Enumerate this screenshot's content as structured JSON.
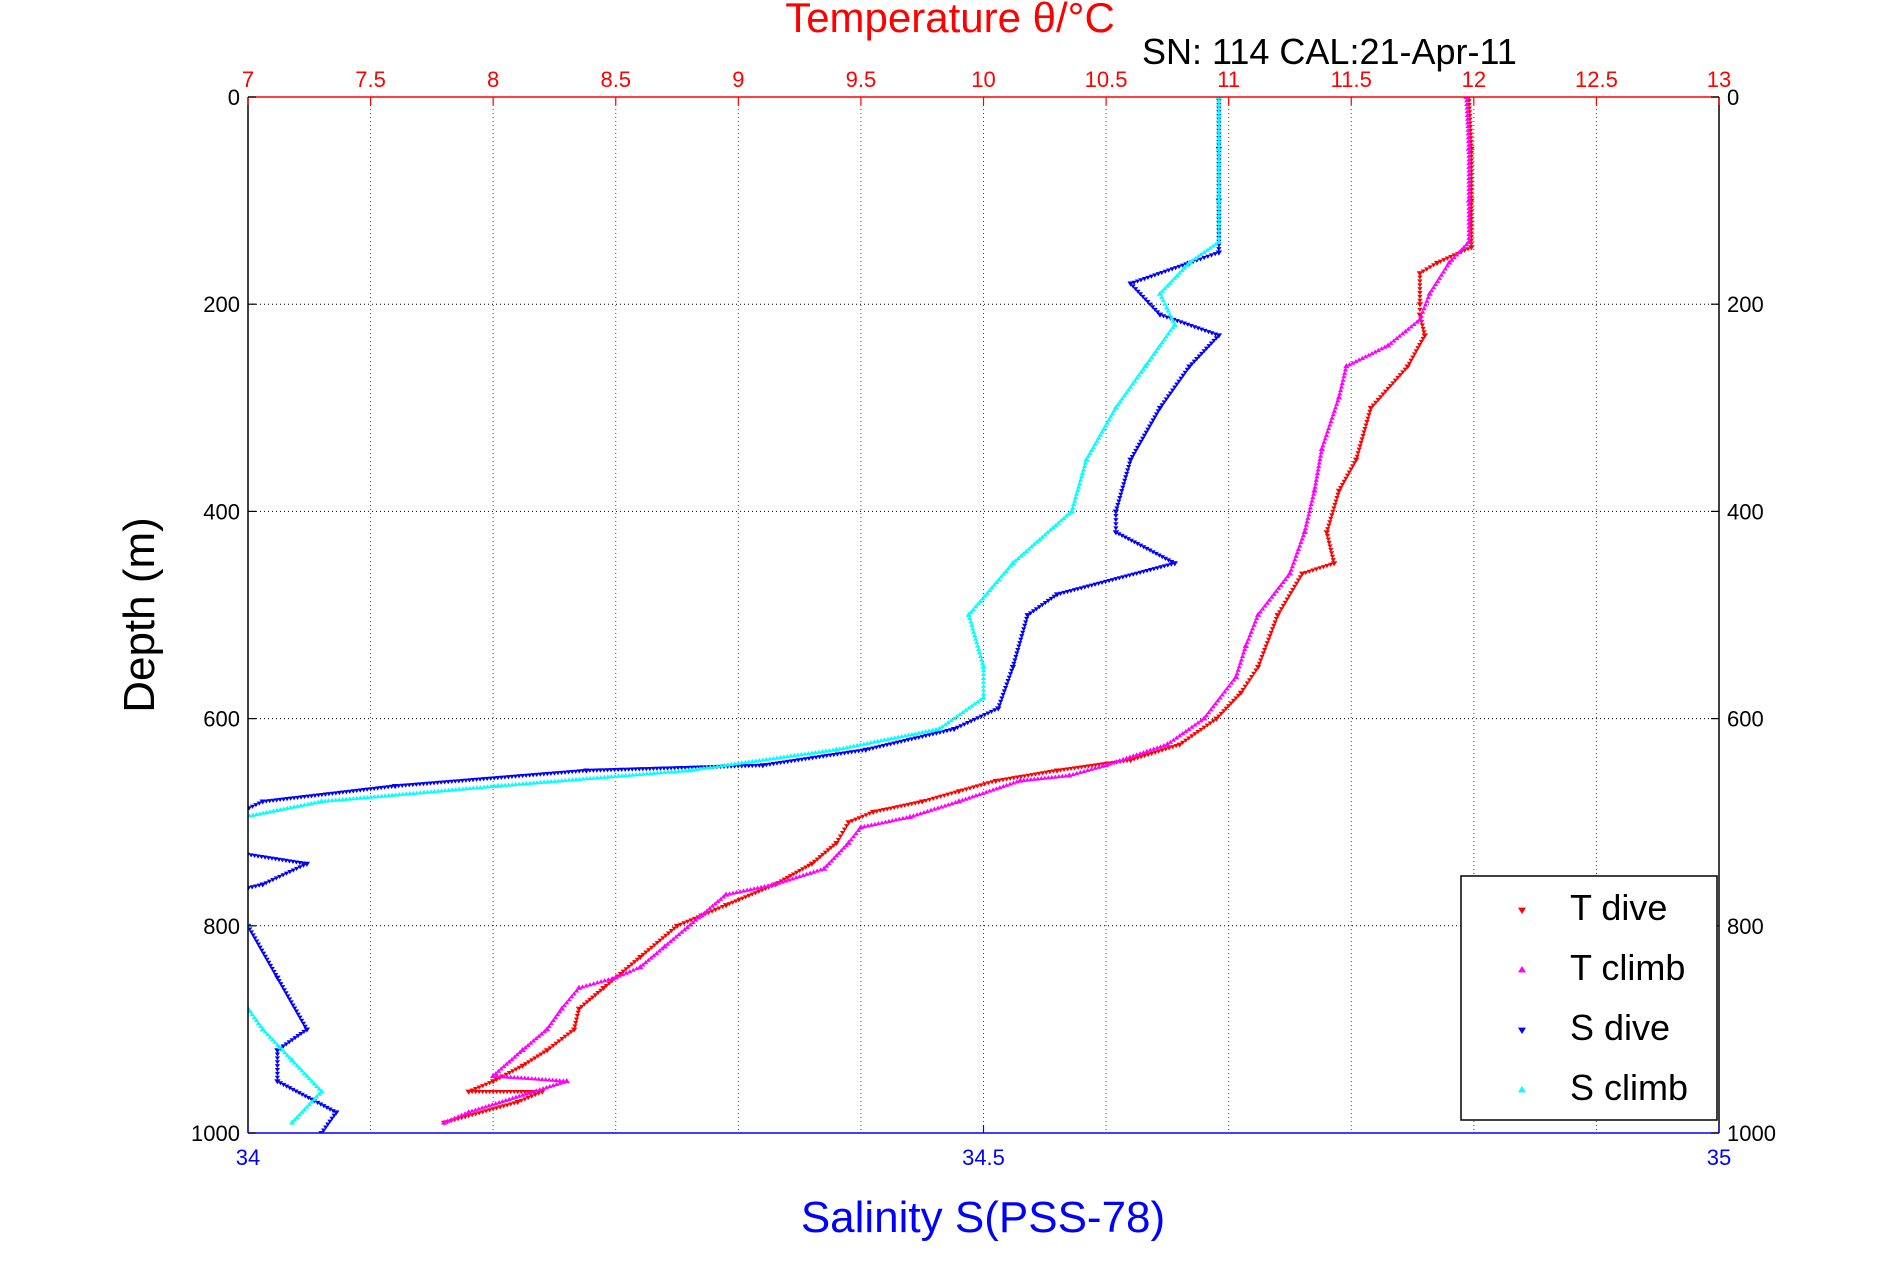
{
  "chart_data": {
    "type": "scatter",
    "title": "Temperature θ/°C",
    "subtitle": "SN: 114  CAL:21-Apr-11",
    "ylabel": "Depth (m)",
    "xlabel": "Salinity S(PSS-78)",
    "y_axis": {
      "reversed": true,
      "ylim": [
        0,
        1000
      ],
      "ticks": [
        0,
        200,
        400,
        600,
        800,
        1000
      ],
      "tick_labels": [
        "0",
        "200",
        "400",
        "600",
        "800",
        "1000"
      ]
    },
    "temperature_axis": {
      "position": "top",
      "xlim": [
        7,
        13
      ],
      "ticks": [
        7,
        7.5,
        8,
        8.5,
        9,
        9.5,
        10,
        10.5,
        11,
        11.5,
        12,
        12.5,
        13
      ],
      "tick_labels": [
        "7",
        "7.5",
        "8",
        "8.5",
        "9",
        "9.5",
        "10",
        "10.5",
        "11",
        "11.5",
        "12",
        "12.5",
        "13"
      ],
      "color": "#ff0000"
    },
    "salinity_axis": {
      "position": "bottom",
      "xlim": [
        34,
        35
      ],
      "ticks": [
        34,
        34.5,
        35
      ],
      "tick_labels": [
        "34",
        "34.5",
        "35"
      ],
      "color": "#0000ff"
    },
    "grid": true,
    "legend_position": "bottom-right",
    "series": [
      {
        "name": "T dive",
        "axis": "temperature",
        "color": "#ff0000",
        "marker": "triangle-down",
        "points": [
          [
            11.98,
            0
          ],
          [
            11.99,
            50
          ],
          [
            11.99,
            100
          ],
          [
            11.99,
            145
          ],
          [
            11.85,
            160
          ],
          [
            11.78,
            170
          ],
          [
            11.78,
            200
          ],
          [
            11.78,
            210
          ],
          [
            11.8,
            230
          ],
          [
            11.73,
            260
          ],
          [
            11.58,
            300
          ],
          [
            11.52,
            350
          ],
          [
            11.45,
            380
          ],
          [
            11.4,
            420
          ],
          [
            11.43,
            450
          ],
          [
            11.3,
            460
          ],
          [
            11.2,
            500
          ],
          [
            11.12,
            550
          ],
          [
            11.05,
            575
          ],
          [
            10.95,
            600
          ],
          [
            10.8,
            625
          ],
          [
            10.6,
            640
          ],
          [
            10.3,
            650
          ],
          [
            10.05,
            660
          ],
          [
            9.9,
            670
          ],
          [
            9.75,
            680
          ],
          [
            9.55,
            690
          ],
          [
            9.45,
            700
          ],
          [
            9.4,
            720
          ],
          [
            9.3,
            740
          ],
          [
            9.15,
            760
          ],
          [
            8.95,
            780
          ],
          [
            8.85,
            790
          ],
          [
            8.75,
            800
          ],
          [
            8.6,
            830
          ],
          [
            8.45,
            860
          ],
          [
            8.35,
            880
          ],
          [
            8.33,
            900
          ],
          [
            8.22,
            920
          ],
          [
            8.12,
            935
          ],
          [
            8.0,
            950
          ],
          [
            7.9,
            960
          ],
          [
            8.2,
            960
          ],
          [
            8.1,
            970
          ],
          [
            7.8,
            990
          ]
        ]
      },
      {
        "name": "T climb",
        "axis": "temperature",
        "color": "#ff00ff",
        "marker": "triangle-up",
        "points": [
          [
            11.97,
            0
          ],
          [
            11.98,
            50
          ],
          [
            11.98,
            100
          ],
          [
            11.98,
            140
          ],
          [
            11.9,
            160
          ],
          [
            11.82,
            190
          ],
          [
            11.78,
            215
          ],
          [
            11.65,
            240
          ],
          [
            11.48,
            260
          ],
          [
            11.45,
            290
          ],
          [
            11.38,
            340
          ],
          [
            11.35,
            380
          ],
          [
            11.31,
            420
          ],
          [
            11.25,
            460
          ],
          [
            11.12,
            500
          ],
          [
            11.07,
            530
          ],
          [
            11.03,
            560
          ],
          [
            10.9,
            600
          ],
          [
            10.75,
            625
          ],
          [
            10.5,
            645
          ],
          [
            10.35,
            655
          ],
          [
            10.15,
            660
          ],
          [
            9.9,
            680
          ],
          [
            9.7,
            695
          ],
          [
            9.5,
            705
          ],
          [
            9.45,
            720
          ],
          [
            9.35,
            745
          ],
          [
            9.15,
            760
          ],
          [
            8.95,
            770
          ],
          [
            8.85,
            790
          ],
          [
            8.7,
            820
          ],
          [
            8.6,
            840
          ],
          [
            8.5,
            850
          ],
          [
            8.35,
            860
          ],
          [
            8.28,
            880
          ],
          [
            8.22,
            900
          ],
          [
            8.12,
            920
          ],
          [
            8.0,
            945
          ],
          [
            8.3,
            950
          ],
          [
            7.9,
            980
          ],
          [
            7.8,
            990
          ]
        ]
      },
      {
        "name": "S dive",
        "axis": "salinity",
        "color": "#0000ff",
        "marker": "triangle-down",
        "points": [
          [
            34.66,
            0
          ],
          [
            34.66,
            50
          ],
          [
            34.66,
            100
          ],
          [
            34.66,
            150
          ],
          [
            34.64,
            160
          ],
          [
            34.6,
            180
          ],
          [
            34.62,
            210
          ],
          [
            34.66,
            230
          ],
          [
            34.64,
            260
          ],
          [
            34.62,
            300
          ],
          [
            34.6,
            350
          ],
          [
            34.59,
            400
          ],
          [
            34.59,
            420
          ],
          [
            34.63,
            450
          ],
          [
            34.55,
            480
          ],
          [
            34.53,
            500
          ],
          [
            34.52,
            550
          ],
          [
            34.51,
            590
          ],
          [
            34.48,
            610
          ],
          [
            34.42,
            630
          ],
          [
            34.35,
            645
          ],
          [
            34.23,
            650
          ],
          [
            34.1,
            665
          ],
          [
            34.01,
            680
          ],
          [
            33.98,
            700
          ],
          [
            33.95,
            720
          ],
          [
            34.04,
            740
          ],
          [
            34.01,
            760
          ],
          [
            33.95,
            780
          ],
          [
            34.0,
            800
          ],
          [
            34.02,
            850
          ],
          [
            34.04,
            900
          ],
          [
            34.02,
            920
          ],
          [
            34.02,
            950
          ],
          [
            34.06,
            980
          ],
          [
            34.05,
            1000
          ]
        ]
      },
      {
        "name": "S climb",
        "axis": "salinity",
        "color": "#00ffff",
        "marker": "triangle-up",
        "points": [
          [
            34.66,
            0
          ],
          [
            34.66,
            50
          ],
          [
            34.66,
            100
          ],
          [
            34.66,
            140
          ],
          [
            34.64,
            160
          ],
          [
            34.62,
            190
          ],
          [
            34.63,
            220
          ],
          [
            34.61,
            260
          ],
          [
            34.59,
            300
          ],
          [
            34.57,
            350
          ],
          [
            34.56,
            400
          ],
          [
            34.52,
            450
          ],
          [
            34.49,
            500
          ],
          [
            34.5,
            550
          ],
          [
            34.5,
            580
          ],
          [
            34.47,
            610
          ],
          [
            34.4,
            630
          ],
          [
            34.3,
            650
          ],
          [
            34.17,
            665
          ],
          [
            34.05,
            680
          ],
          [
            33.98,
            700
          ],
          [
            33.96,
            730
          ],
          [
            33.99,
            750
          ],
          [
            33.97,
            780
          ],
          [
            34.0,
            800
          ],
          [
            33.99,
            850
          ],
          [
            34.0,
            880
          ],
          [
            34.01,
            900
          ],
          [
            34.03,
            930
          ],
          [
            34.05,
            960
          ],
          [
            34.03,
            990
          ]
        ]
      }
    ]
  }
}
